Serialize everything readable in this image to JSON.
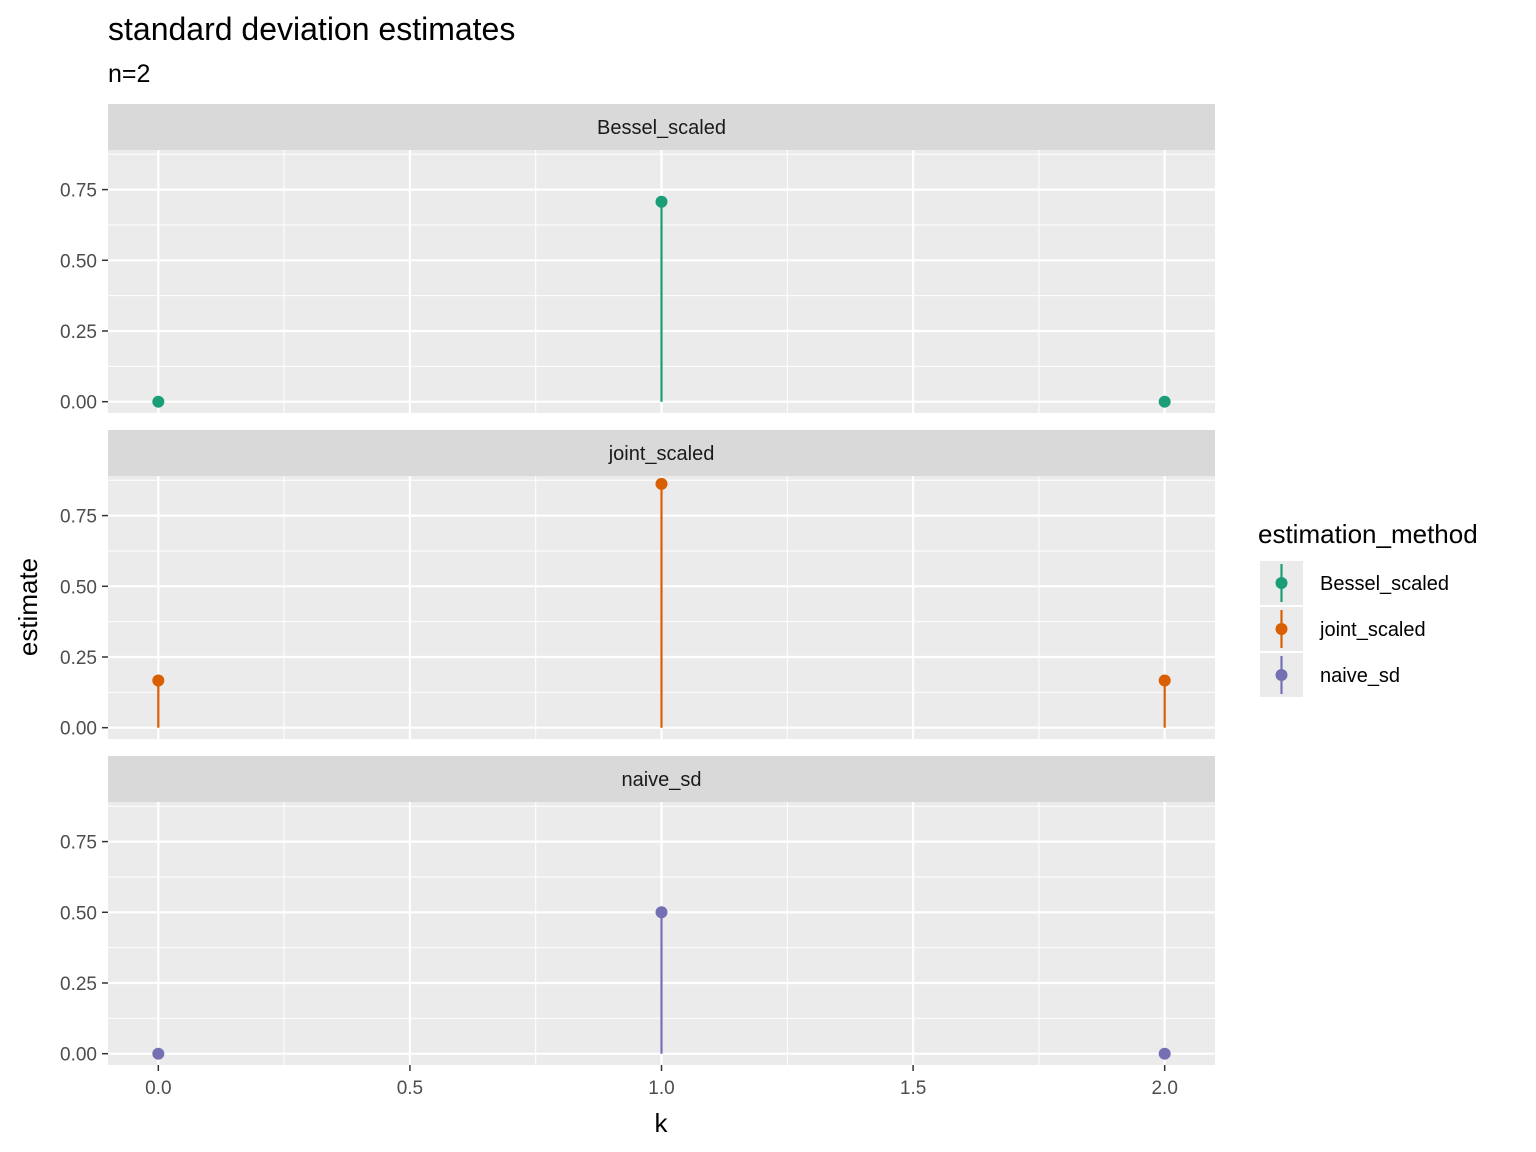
{
  "chart_data": {
    "type": "lollipop",
    "title": "standard deviation estimates",
    "subtitle": "n=2",
    "xlabel": "k",
    "ylabel": "estimate",
    "xlim": [
      -0.1,
      2.1
    ],
    "ylim": [
      -0.04,
      0.89
    ],
    "x_ticks": [
      "0.0",
      "0.5",
      "1.0",
      "1.5",
      "2.0"
    ],
    "x_tick_values": [
      0,
      0.5,
      1,
      1.5,
      2
    ],
    "y_ticks": [
      "0.00",
      "0.25",
      "0.50",
      "0.75"
    ],
    "y_tick_values": [
      0,
      0.25,
      0.5,
      0.75
    ],
    "grid": true,
    "legend": {
      "title": "estimation_method",
      "position": "right"
    },
    "facets": [
      {
        "strip": "Bessel_scaled",
        "color": "#1b9e77",
        "x": [
          0,
          1,
          2
        ],
        "y": [
          0.0,
          0.707,
          0.0
        ]
      },
      {
        "strip": "joint_scaled",
        "color": "#d95f02",
        "x": [
          0,
          1,
          2
        ],
        "y": [
          0.167,
          0.862,
          0.167
        ]
      },
      {
        "strip": "naive_sd",
        "color": "#7570b3",
        "x": [
          0,
          1,
          2
        ],
        "y": [
          0.0,
          0.5,
          0.0
        ]
      }
    ],
    "series": [
      {
        "name": "Bessel_scaled",
        "color": "#1b9e77"
      },
      {
        "name": "joint_scaled",
        "color": "#d95f02"
      },
      {
        "name": "naive_sd",
        "color": "#7570b3"
      }
    ]
  }
}
